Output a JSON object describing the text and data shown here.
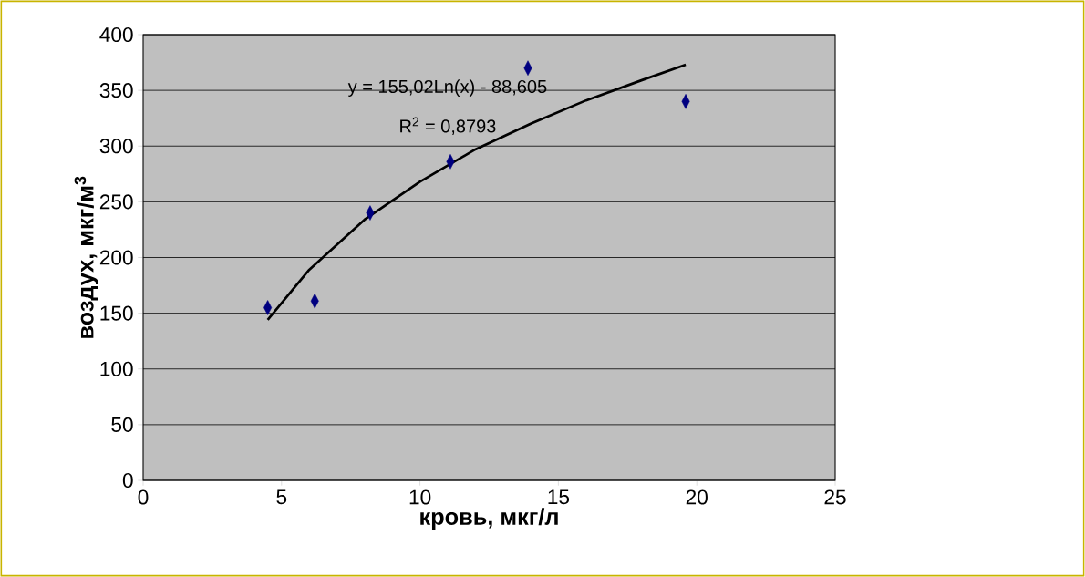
{
  "chart_data": {
    "type": "scatter",
    "xlabel": "кровь, мкг/л",
    "ylabel": "воздух, мкг/м$^{3}$",
    "annotations": [
      "y = 155,02Ln(x) - 88,605",
      "R$^{2}$ = 0,8793"
    ],
    "series": [
      {
        "color": "#000080",
        "marker": "diamond",
        "x": [
          4.5,
          6.2,
          8.2,
          11.1,
          13.9,
          19.6
        ],
        "values": [
          155,
          161,
          240,
          286,
          370,
          340
        ]
      },
      {
        "type": "line",
        "color": "#000000",
        "marker": "none",
        "line_style": "solid",
        "x": [
          4.5,
          6,
          8,
          10,
          12,
          14,
          16,
          18,
          19.6
        ],
        "values": [
          144,
          189,
          234,
          268,
          297,
          320,
          341,
          359,
          373
        ]
      }
    ],
    "xlim": [
      0,
      25
    ],
    "ylim": [
      0,
      400
    ],
    "xticks": [
      0,
      5,
      10,
      15,
      20,
      25
    ],
    "yticks": [
      0,
      50,
      100,
      150,
      200,
      250,
      300,
      350,
      400
    ],
    "grid": "y"
  }
}
